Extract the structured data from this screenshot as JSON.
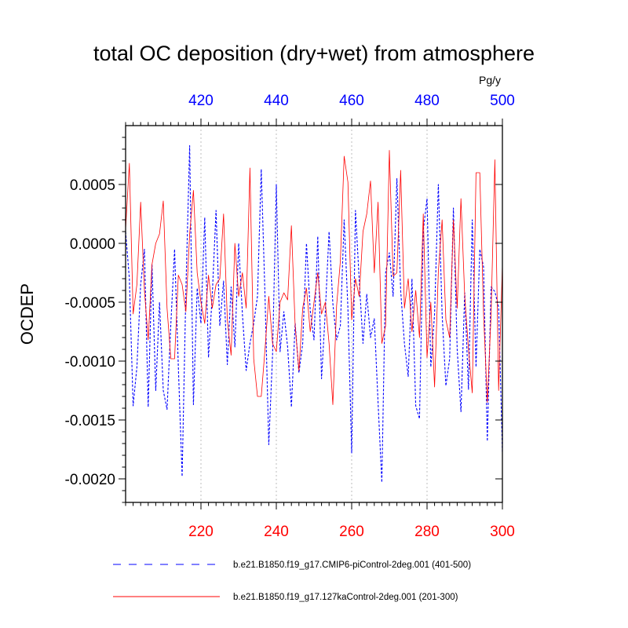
{
  "chart_data": {
    "type": "line",
    "title": "total OC deposition (dry+wet) from atmosphere",
    "units": "Pg/y",
    "ylabel": "OCDEP",
    "ylim": [
      -0.0022,
      0.001
    ],
    "yticks": [
      0.0005,
      0.0,
      -0.0005,
      -0.001,
      -0.0015,
      -0.002
    ],
    "ytick_labels": [
      "0.0005",
      "0.0000",
      "-0.0005",
      "-0.0010",
      "-0.0015",
      "-0.0020"
    ],
    "bottom_axis": {
      "color": "#ff0000",
      "xlim": [
        200,
        300
      ],
      "ticks": [
        220,
        240,
        260,
        280,
        300
      ],
      "tick_labels": [
        "220",
        "240",
        "260",
        "280",
        "300"
      ]
    },
    "top_axis": {
      "color": "#0000ff",
      "xlim": [
        400,
        500
      ],
      "ticks": [
        420,
        440,
        460,
        480,
        500
      ],
      "tick_labels": [
        "420",
        "440",
        "460",
        "480",
        "500"
      ]
    },
    "series": [
      {
        "name": "b.e21.B1850.f19_g17.CMIP6-piControl-2deg.001 (401-500)",
        "color": "#0000ff",
        "style": "dashed",
        "axis": "top",
        "x_start": 400,
        "values": [
          0.0001,
          -0.0003,
          -0.00138,
          -0.00105,
          -0.00035,
          -5e-05,
          -0.00139,
          -0.00018,
          -0.00125,
          -0.0005,
          -0.00125,
          -0.00141,
          -0.00069,
          -5e-05,
          -0.00105,
          -0.00198,
          -0.0004,
          0.00083,
          -0.00137,
          -0.00038,
          -0.00068,
          0.00022,
          -0.00097,
          -0.00044,
          0.00028,
          -0.0007,
          -0.00032,
          -0.00103,
          -0.00037,
          -0.00088,
          0.0,
          -0.0006,
          -0.00108,
          -0.00085,
          -0.00068,
          -0.00045,
          0.00063,
          -0.00045,
          -0.00171,
          -0.00095,
          0.0005,
          -0.00092,
          -0.00058,
          -0.00088,
          -0.00139,
          -0.00068,
          -0.0011,
          -0.00085,
          0.0,
          -0.00057,
          -0.00082,
          6e-05,
          -0.00115,
          -0.00058,
          0.0001,
          -0.00051,
          -0.00082,
          -0.0007,
          0.0002,
          -0.00055,
          -0.00178,
          0.00028,
          -0.00031,
          -0.00085,
          -0.00043,
          -0.0008,
          -0.00064,
          -0.00135,
          -0.00203,
          -0.00025,
          -8e-05,
          -0.00045,
          0.00055,
          -0.0004,
          -0.00085,
          -0.00113,
          -0.0003,
          -0.00138,
          -0.00149,
          0.00011,
          0.00038,
          -0.00105,
          -0.0006,
          0.0005,
          -0.0006,
          -0.00121,
          -0.00098,
          0.0003,
          -0.0009,
          -0.00143,
          -0.00042,
          -0.00124,
          0.0002,
          -0.00105,
          -5e-05,
          -0.0002,
          -0.00168,
          -0.00037,
          -0.00041,
          -0.00054,
          -0.00178
        ]
      },
      {
        "name": "b.e21.B1850.f19_g17.127kaControl-2deg.001 (201-300)",
        "color": "#ff0000",
        "style": "solid",
        "axis": "bottom",
        "x_start": 200,
        "values": [
          0.00012,
          0.00068,
          -0.0006,
          -0.00035,
          0.00035,
          -0.0004,
          -0.00082,
          -0.00018,
          0.0,
          8e-05,
          0.00036,
          -0.00055,
          -0.00098,
          -0.00098,
          -0.00027,
          -0.00035,
          -0.00058,
          8e-05,
          0.00045,
          -0.00025,
          -0.0005,
          -0.00068,
          -0.00027,
          -0.00055,
          -0.00035,
          -0.0003,
          0.00025,
          -0.00065,
          -0.00095,
          0.0,
          -0.00045,
          -0.00025,
          -0.00055,
          0.00064,
          -0.00098,
          -0.0013,
          -0.0013,
          -0.0009,
          -0.00045,
          -0.00085,
          -0.00092,
          -0.0005,
          -0.00042,
          -0.00048,
          0.00015,
          -0.0007,
          -0.00108,
          -0.00055,
          -0.00038,
          -0.00075,
          -0.0005,
          -0.00025,
          -0.0006,
          -0.0005,
          -0.00085,
          -0.00137,
          -0.00053,
          -0.00015,
          0.00074,
          0.00052,
          -0.00065,
          -0.0003,
          -0.00045,
          0.0001,
          0.00025,
          0.00053,
          -0.00025,
          0.00035,
          -0.00085,
          -0.0007,
          0.00079,
          -0.00028,
          -0.00025,
          0.00062,
          -0.00055,
          -0.0003,
          -0.00075,
          -0.0004,
          -0.0008,
          0.00025,
          -0.00097,
          -0.0005,
          -0.00122,
          -0.00024,
          0.0002,
          -0.00065,
          -0.0008,
          0.0002,
          -0.00055,
          0.00038,
          -0.00045,
          -0.0009,
          -0.00127,
          0.0006,
          0.0006,
          -0.0006,
          -0.00135,
          -0.0006,
          0.00071,
          -0.00125,
          -0.00018
        ]
      }
    ]
  }
}
